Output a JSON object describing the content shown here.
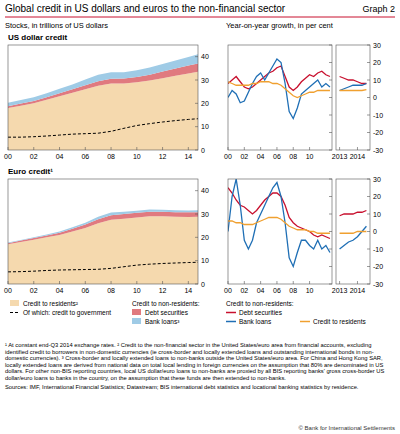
{
  "figure": {
    "title": "Global credit in US dollars and euros to the non-financial sector",
    "graph_label": "Graph 2",
    "left_heading": "Stocks, in trillions of US dollars",
    "right_heading": "Year-on-year growth, in per cent",
    "legend_headings": [
      "Credit to non-residents:",
      "Credit to non-residents:"
    ],
    "footnotes": [
      "¹ At constant end-Q3 2014 exchange rates.",
      "² Credit to the non-financial sector in the United States/euro area from financial accounts, excluding identified credit to borrowers in non-domestic currencies (ie cross-border and locally extended loans and outstanding international bonds in non-domestic currencies).",
      "³ Cross-border and locally extended loans to non-banks outside the United States/euro area. For China and Hong Kong SAR, locally extended loans are derived from national data on total local lending in foreign currencies on the assumption that 80% are denominated in US dollars. For other non-BIS reporting countries, local US dollar/euro loans to non-banks are proxied by all BIS reporting banks' gross cross-border US dollar/euro loans to banks in the country, on the assumption that these funds are then extended to non-banks."
    ],
    "sources": "Sources: IMF, International Financial Statistics; Datastream; BIS international debt statistics and locational banking statistics by residence.",
    "copyright": "© Bank for International Settlements"
  },
  "chart_data": [
    {
      "type": "area",
      "title": "US dollar credit",
      "stacked": true,
      "x": [
        2000,
        2001,
        2002,
        2003,
        2004,
        2005,
        2006,
        2007,
        2008,
        2009,
        2010,
        2011,
        2012,
        2013,
        2014,
        2014.75
      ],
      "xlim": [
        2000,
        2014.75
      ],
      "xticks": [
        {
          "value": 2000,
          "label": "00"
        },
        {
          "value": 2002,
          "label": "02"
        },
        {
          "value": 2004,
          "label": "04"
        },
        {
          "value": 2006,
          "label": "06"
        },
        {
          "value": 2008,
          "label": "08"
        },
        {
          "value": 2010,
          "label": "10"
        },
        {
          "value": 2012,
          "label": "12"
        },
        {
          "value": 2014,
          "label": "14"
        }
      ],
      "ylim": [
        0,
        45
      ],
      "yticks": [
        0,
        10,
        20,
        30,
        40
      ],
      "series": [
        {
          "name": "Credit to residents²",
          "type": "area",
          "color": "#f5d9ae",
          "values": [
            18,
            19,
            20,
            21.5,
            23,
            24.5,
            26,
            27.5,
            28.5,
            28.5,
            29,
            29.8,
            30.8,
            31.8,
            32.8,
            33.5
          ]
        },
        {
          "name": "Debt securities",
          "type": "area",
          "color": "#e07a7f",
          "values": [
            0.8,
            0.9,
            1.0,
            1.1,
            1.3,
            1.5,
            1.8,
            2.0,
            2.0,
            2.1,
            2.3,
            2.5,
            2.8,
            3.1,
            3.4,
            3.6
          ]
        },
        {
          "name": "Bank loans³",
          "type": "area",
          "color": "#9fcbe6",
          "values": [
            1.4,
            1.5,
            1.6,
            1.7,
            1.9,
            2.1,
            2.4,
            2.8,
            2.8,
            2.7,
            2.9,
            3.1,
            3.3,
            3.5,
            3.7,
            3.9
          ]
        },
        {
          "name": "Of which: credit to government",
          "type": "line",
          "line_style": "dashed",
          "color": "#000000",
          "values": [
            5.5,
            5.5,
            5.7,
            6.0,
            6.4,
            6.8,
            7.0,
            7.2,
            8.0,
            9.3,
            10.5,
            11.3,
            12.0,
            12.6,
            13.1,
            13.4
          ]
        }
      ]
    },
    {
      "type": "line",
      "tick_labels": "x",
      "x": [
        2000,
        2000.5,
        2001,
        2001.5,
        2002,
        2002.5,
        2003,
        2003.5,
        2004,
        2004.5,
        2005,
        2005.5,
        2006,
        2006.5,
        2007,
        2007.5,
        2008,
        2008.5,
        2009,
        2009.5,
        2010,
        2010.5,
        2011,
        2011.5,
        2012,
        2012.5
      ],
      "xlim": [
        2000,
        2012.75
      ],
      "xticks": [
        {
          "value": 2000,
          "label": "00"
        },
        {
          "value": 2002,
          "label": "02"
        },
        {
          "value": 2004,
          "label": "04"
        },
        {
          "value": 2006,
          "label": "06"
        },
        {
          "value": 2008,
          "label": "08"
        },
        {
          "value": 2010,
          "label": "10"
        }
      ],
      "ylim": [
        -30,
        30
      ],
      "yticks": [
        -30,
        -20,
        -10,
        0,
        10,
        20,
        30
      ],
      "series": [
        {
          "name": "Debt securities",
          "color": "#c8102e",
          "values": [
            8,
            10,
            12,
            9,
            6,
            5,
            6,
            8,
            10,
            12,
            14,
            15,
            17,
            18,
            12,
            6,
            4,
            6,
            9,
            11,
            13,
            12,
            14,
            15,
            13,
            12
          ]
        },
        {
          "name": "Bank loans",
          "color": "#1f6fb5",
          "values": [
            0,
            4,
            2,
            -3,
            -2,
            3,
            8,
            12,
            14,
            10,
            14,
            18,
            22,
            20,
            8,
            -8,
            -12,
            -6,
            2,
            4,
            6,
            8,
            10,
            6,
            8,
            6
          ]
        },
        {
          "name": "Credit to residents",
          "color": "#f0a030",
          "values": [
            9,
            8,
            7,
            7,
            7,
            7,
            8,
            8,
            9,
            9,
            9,
            8,
            8,
            7,
            5,
            3,
            1,
            0,
            1,
            2,
            3,
            3,
            4,
            4,
            4,
            4
          ]
        }
      ]
    },
    {
      "type": "line",
      "x": [
        2013,
        2013.25,
        2013.5,
        2013.75,
        2014,
        2014.25,
        2014.5
      ],
      "xlim": [
        2012.8,
        2014.7
      ],
      "xticks": [
        2013,
        2014
      ],
      "ylim": [
        -30,
        30
      ],
      "yticks": [
        -30,
        -20,
        -10,
        0,
        10,
        20,
        30
      ],
      "series": [
        {
          "color": "#c8102e",
          "values": [
            12,
            11,
            10,
            10,
            9,
            8,
            8
          ]
        },
        {
          "color": "#1f6fb5",
          "values": [
            4,
            5,
            6,
            7,
            7,
            7,
            8
          ]
        },
        {
          "color": "#f0a030",
          "values": [
            4,
            4,
            4,
            4,
            4,
            4,
            4.5
          ]
        }
      ]
    },
    {
      "type": "area",
      "title": "Euro credit¹",
      "stacked": true,
      "x": [
        2000,
        2001,
        2002,
        2003,
        2004,
        2005,
        2006,
        2007,
        2008,
        2009,
        2010,
        2011,
        2012,
        2013,
        2014,
        2014.75
      ],
      "xlim": [
        2000,
        2014.75
      ],
      "xticks": [
        {
          "value": 2000,
          "label": "00"
        },
        {
          "value": 2002,
          "label": "02"
        },
        {
          "value": 2004,
          "label": "04"
        },
        {
          "value": 2006,
          "label": "06"
        },
        {
          "value": 2008,
          "label": "08"
        },
        {
          "value": 2010,
          "label": "10"
        },
        {
          "value": 2012,
          "label": "12"
        },
        {
          "value": 2014,
          "label": "14"
        }
      ],
      "ylim": [
        0,
        45
      ],
      "yticks": [
        0,
        10,
        20,
        30,
        40
      ],
      "series": [
        {
          "type": "area",
          "color": "#f5d9ae",
          "values": [
            17,
            18,
            19,
            20,
            21,
            22.5,
            24,
            26,
            27.5,
            28,
            28.5,
            29,
            29,
            28.8,
            28.7,
            28.8
          ]
        },
        {
          "type": "area",
          "color": "#e07a7f",
          "values": [
            0.5,
            0.6,
            0.7,
            0.8,
            1.0,
            1.2,
            1.5,
            1.8,
            2.0,
            2.0,
            2.0,
            2.0,
            2.0,
            2.0,
            2.0,
            2.0
          ]
        },
        {
          "type": "area",
          "color": "#9fcbe6",
          "values": [
            0.3,
            0.3,
            0.3,
            0.4,
            0.5,
            0.6,
            0.8,
            1.0,
            1.1,
            1.0,
            0.9,
            0.9,
            0.8,
            0.8,
            0.8,
            0.8
          ]
        },
        {
          "type": "line",
          "line_style": "dashed",
          "color": "#000000",
          "values": [
            5.2,
            5.3,
            5.5,
            5.8,
            6.0,
            6.1,
            6.2,
            6.3,
            6.7,
            7.4,
            8.1,
            8.5,
            8.8,
            9.0,
            9.2,
            9.3
          ]
        }
      ]
    },
    {
      "type": "line",
      "tick_labels": "x",
      "x": [
        2000,
        2000.5,
        2001,
        2001.5,
        2002,
        2002.5,
        2003,
        2003.5,
        2004,
        2004.5,
        2005,
        2005.5,
        2006,
        2006.5,
        2007,
        2007.5,
        2008,
        2008.5,
        2009,
        2009.5,
        2010,
        2010.5,
        2011,
        2011.5,
        2012,
        2012.5
      ],
      "xlim": [
        2000,
        2012.75
      ],
      "xticks": [
        {
          "value": 2000,
          "label": "00"
        },
        {
          "value": 2002,
          "label": "02"
        },
        {
          "value": 2004,
          "label": "04"
        },
        {
          "value": 2006,
          "label": "06"
        },
        {
          "value": 2008,
          "label": "08"
        },
        {
          "value": 2010,
          "label": "10"
        }
      ],
      "ylim": [
        -30,
        30
      ],
      "yticks": [
        -30,
        -20,
        -10,
        0,
        10,
        20,
        30
      ],
      "series": [
        {
          "color": "#c8102e",
          "values": [
            25,
            22,
            18,
            15,
            14,
            12,
            10,
            12,
            15,
            18,
            20,
            22,
            22,
            20,
            15,
            8,
            5,
            3,
            2,
            1,
            0,
            -2,
            -3,
            -2,
            -3,
            -4
          ]
        },
        {
          "color": "#1f6fb5",
          "values": [
            0,
            20,
            30,
            15,
            -5,
            -10,
            -5,
            5,
            10,
            15,
            20,
            25,
            28,
            20,
            5,
            -15,
            -20,
            -12,
            -5,
            -5,
            -8,
            -10,
            -5,
            -10,
            -8,
            -12
          ]
        },
        {
          "color": "#f0a030",
          "values": [
            6,
            6,
            5,
            5,
            4,
            4,
            4,
            5,
            6,
            7,
            8,
            8,
            8,
            7,
            5,
            3,
            2,
            1,
            1,
            1,
            0,
            0,
            -1,
            -1,
            -1,
            -1
          ]
        }
      ]
    },
    {
      "type": "line",
      "x": [
        2013,
        2013.25,
        2013.5,
        2013.75,
        2014,
        2014.25,
        2014.5
      ],
      "xlim": [
        2012.8,
        2014.7
      ],
      "xticks": [
        2013,
        2014
      ],
      "ylim": [
        -30,
        30
      ],
      "yticks": [
        -30,
        -20,
        -10,
        0,
        10,
        20,
        30
      ],
      "series": [
        {
          "color": "#c8102e",
          "values": [
            9,
            10,
            10,
            10,
            11,
            11,
            12
          ]
        },
        {
          "color": "#1f6fb5",
          "values": [
            -10,
            -8,
            -6,
            -5,
            -3,
            0,
            3
          ]
        },
        {
          "color": "#f0a030",
          "values": [
            -1,
            -1,
            -1,
            -1,
            0,
            0,
            0
          ]
        }
      ]
    }
  ]
}
